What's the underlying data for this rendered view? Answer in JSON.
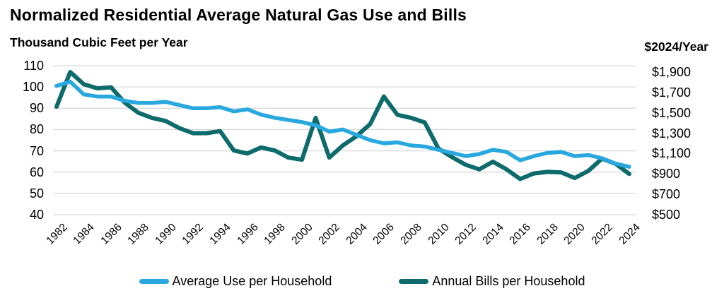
{
  "chart_data": {
    "type": "line",
    "title": "Normalized Residential Average Natural Gas Use and Bills",
    "grid": "horizontal",
    "legend_position": "bottom",
    "background": "#ffffff",
    "gridline_color": "#d9d9d9",
    "left_axis": {
      "label": "Thousand Cubic Feet per Year",
      "min": 40,
      "max": 110,
      "tick_values": [
        110,
        100,
        90,
        80,
        70,
        60,
        50,
        40
      ],
      "tick_labels": [
        "110",
        "100",
        "90",
        "80",
        "70",
        "60",
        "50",
        "40"
      ]
    },
    "right_axis": {
      "label": "$2024/Year",
      "min": 500,
      "max": 1900,
      "tick_values": [
        1900,
        1700,
        1500,
        1300,
        1100,
        900,
        700,
        500
      ],
      "tick_labels": [
        "$1,900",
        "$1,700",
        "$1,500",
        "$1,300",
        "$1,100",
        "$900",
        "$700",
        "$500"
      ]
    },
    "x": [
      1982,
      1983,
      1984,
      1985,
      1986,
      1987,
      1988,
      1989,
      1990,
      1991,
      1992,
      1993,
      1994,
      1995,
      1996,
      1997,
      1998,
      1999,
      2000,
      2001,
      2002,
      2003,
      2004,
      2005,
      2006,
      2007,
      2008,
      2009,
      2010,
      2011,
      2012,
      2013,
      2014,
      2015,
      2016,
      2017,
      2018,
      2019,
      2020,
      2021,
      2022,
      2023,
      2024
    ],
    "x_tick_labels": [
      "1982",
      "1984",
      "1986",
      "1988",
      "1990",
      "1992",
      "1994",
      "1996",
      "1998",
      "2000",
      "2002",
      "2004",
      "2006",
      "2008",
      "2010",
      "2012",
      "2014",
      "2016",
      "2018",
      "2020",
      "2022",
      "2024"
    ],
    "series": [
      {
        "name": "Average Use per Household",
        "axis": "left",
        "color": "#29A8DF",
        "values": [
          100.5,
          102.5,
          96.5,
          95.5,
          95.5,
          93.5,
          92.5,
          92.5,
          93,
          91.5,
          90,
          90,
          90.5,
          88.5,
          89.5,
          87,
          85.5,
          84.5,
          83.5,
          82,
          79,
          80,
          77.5,
          75,
          73.5,
          74,
          72.5,
          72,
          70.5,
          69,
          67.5,
          68.5,
          70.5,
          69.5,
          65.5,
          67.5,
          69,
          69.5,
          67.5,
          68,
          66.5,
          64,
          62.5
        ]
      },
      {
        "name": "Annual Bills per Household",
        "axis": "right",
        "color": "#0E6B6C",
        "values": [
          1560,
          1900,
          1780,
          1740,
          1750,
          1600,
          1500,
          1450,
          1420,
          1350,
          1300,
          1300,
          1320,
          1130,
          1100,
          1160,
          1130,
          1060,
          1040,
          1450,
          1060,
          1180,
          1270,
          1390,
          1660,
          1480,
          1450,
          1405,
          1150,
          1065,
          990,
          945,
          1020,
          945,
          850,
          905,
          920,
          915,
          860,
          930,
          1050,
          1000,
          900
        ]
      }
    ]
  },
  "legend": {
    "use_label": "Average Use per Household",
    "bills_label": "Annual Bills per Household"
  }
}
